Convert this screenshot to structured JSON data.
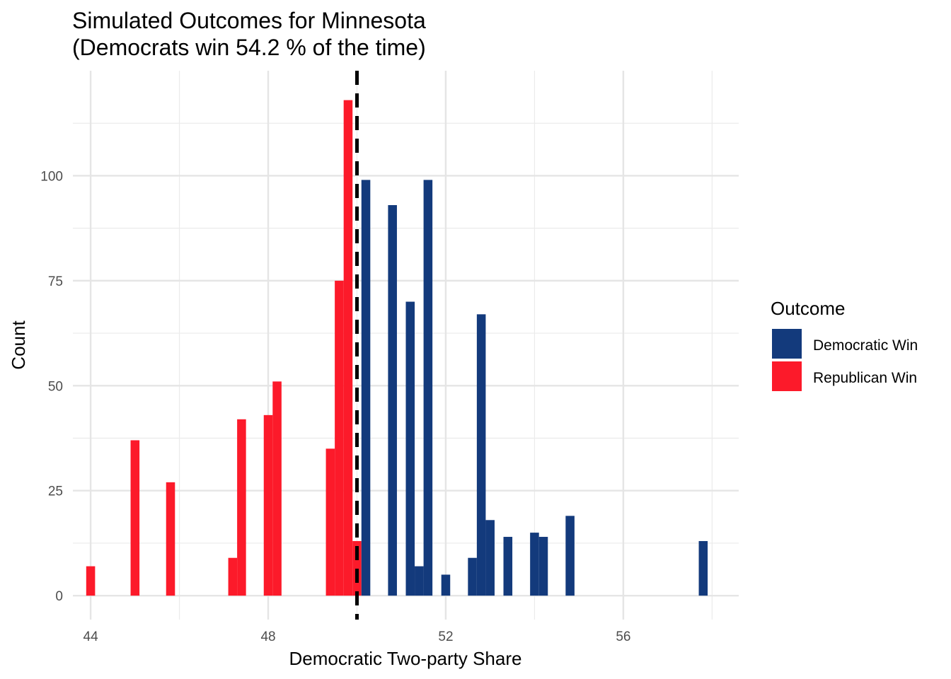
{
  "chart_data": {
    "type": "bar",
    "title_lines": [
      "Simulated Outcomes for Minnesota",
      "(Democrats win 54.2 % of the time)"
    ],
    "xlabel": "Democratic Two-party Share",
    "ylabel": "Count",
    "xlim": [
      43.6,
      58.6
    ],
    "ylim": [
      -5.7,
      125
    ],
    "x_ticks": [
      44,
      48,
      52,
      56
    ],
    "x_minor_ticks": [
      46,
      50,
      54,
      58
    ],
    "y_ticks": [
      0,
      25,
      50,
      75,
      100
    ],
    "y_minor_ticks": [
      12.5,
      37.5,
      62.5,
      87.5,
      112.5
    ],
    "bin_width": 0.2,
    "threshold": 50,
    "grid": true,
    "legend": {
      "title": "Outcome",
      "position": "right",
      "entries": [
        {
          "label": "Democratic Win",
          "color": "#133a7c"
        },
        {
          "label": "Republican Win",
          "color": "#fc1a2a"
        }
      ]
    },
    "series": [
      {
        "name": "Republican Win",
        "color": "#fc1a2a",
        "x": [
          44.0,
          45.0,
          45.8,
          47.2,
          47.4,
          48.0,
          48.2,
          49.4,
          49.6,
          49.8,
          50.0
        ],
        "values": [
          7,
          37,
          27,
          9,
          42,
          43,
          51,
          35,
          75,
          118,
          13
        ]
      },
      {
        "name": "Democratic Win",
        "color": "#133a7c",
        "x": [
          50.2,
          50.8,
          51.2,
          51.4,
          51.6,
          52.0,
          52.6,
          52.8,
          53.0,
          53.4,
          54.0,
          54.2,
          54.8,
          57.8
        ],
        "values": [
          99,
          93,
          70,
          7,
          99,
          5,
          9,
          67,
          18,
          14,
          15,
          14,
          19,
          13
        ]
      }
    ]
  }
}
